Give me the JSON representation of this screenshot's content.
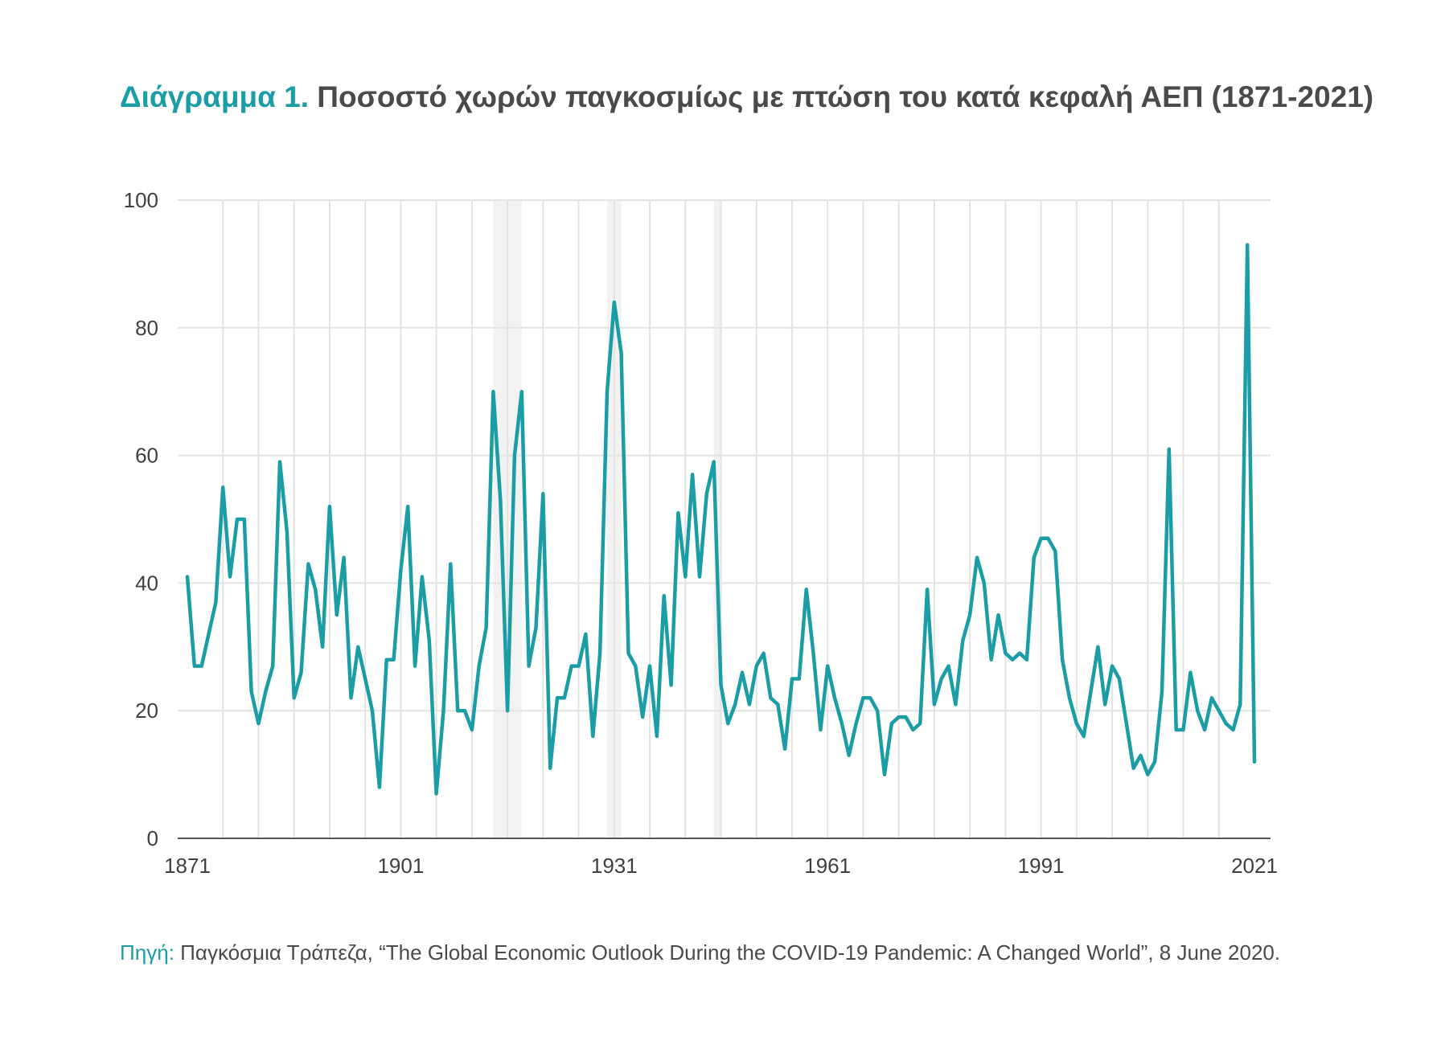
{
  "title": {
    "lead": "Διάγραμμα 1.",
    "text": "Ποσοστό χωρών παγκοσμίως με πτώση του κατά κεφαλή ΑΕΠ",
    "years": "(1871-2021)"
  },
  "source": {
    "lead": "Πηγή:",
    "text": " Παγκόσμια Τράπεζα, “The Global Economic Outlook During the COVID-19 Pandemic: A Changed World”, 8 June 2020."
  },
  "colors": {
    "line": "#1a9da5",
    "title_accent": "#1a9da5",
    "title_text": "#4a4a4a",
    "grid": "#e3e3e3",
    "shade": "#f2f2f2",
    "axis": "#555555"
  },
  "chart_data": {
    "type": "line",
    "title": "Ποσοστό χωρών παγκοσμίως με πτώση του κατά κεφαλή ΑΕΠ",
    "xlabel": "",
    "ylabel": "",
    "xlim": [
      1871,
      2021
    ],
    "ylim": [
      0,
      100
    ],
    "x_ticks": [
      1871,
      1901,
      1931,
      1961,
      1991,
      2021
    ],
    "y_ticks": [
      0,
      20,
      40,
      60,
      80,
      100
    ],
    "grid": "vertical and horizontal",
    "shaded_periods": [
      [
        1914,
        1918
      ],
      [
        1930,
        1932
      ],
      [
        1945,
        1946
      ]
    ],
    "series": [
      {
        "x": [
          1871,
          1872,
          1873,
          1874,
          1875,
          1876,
          1877,
          1878,
          1879,
          1880,
          1881,
          1882,
          1883,
          1884,
          1885,
          1886,
          1887,
          1888,
          1889,
          1890,
          1891,
          1892,
          1893,
          1894,
          1895,
          1896,
          1897,
          1898,
          1899,
          1900,
          1901,
          1902,
          1903,
          1904,
          1905,
          1906,
          1907,
          1908,
          1909,
          1910,
          1911,
          1912,
          1913,
          1914,
          1915,
          1916,
          1917,
          1918,
          1919,
          1920,
          1921,
          1922,
          1923,
          1924,
          1925,
          1926,
          1927,
          1928,
          1929,
          1930,
          1931,
          1932,
          1933,
          1934,
          1935,
          1936,
          1937,
          1938,
          1939,
          1940,
          1941,
          1942,
          1943,
          1944,
          1945,
          1946,
          1947,
          1948,
          1949,
          1950,
          1951,
          1952,
          1953,
          1954,
          1955,
          1956,
          1957,
          1958,
          1959,
          1960,
          1961,
          1962,
          1963,
          1964,
          1965,
          1966,
          1967,
          1968,
          1969,
          1970,
          1971,
          1972,
          1973,
          1974,
          1975,
          1976,
          1977,
          1978,
          1979,
          1980,
          1981,
          1982,
          1983,
          1984,
          1985,
          1986,
          1987,
          1988,
          1989,
          1990,
          1991,
          1992,
          1993,
          1994,
          1995,
          1996,
          1997,
          1998,
          1999,
          2000,
          2001,
          2002,
          2003,
          2004,
          2005,
          2006,
          2007,
          2008,
          2009,
          2010,
          2011,
          2012,
          2013,
          2014,
          2015,
          2016,
          2017,
          2018,
          2019,
          2020,
          2021
        ],
        "y": [
          41,
          27,
          27,
          32,
          37,
          55,
          41,
          50,
          50,
          23,
          18,
          23,
          27,
          59,
          48,
          22,
          26,
          43,
          39,
          30,
          52,
          35,
          44,
          22,
          30,
          25,
          20,
          8,
          28,
          28,
          42,
          52,
          27,
          41,
          31,
          7,
          20,
          43,
          20,
          20,
          17,
          27,
          33,
          70,
          53,
          20,
          60,
          70,
          27,
          33,
          54,
          11,
          22,
          22,
          27,
          27,
          32,
          16,
          29,
          70,
          84,
          76,
          29,
          27,
          19,
          27,
          16,
          38,
          24,
          51,
          41,
          57,
          41,
          54,
          59,
          24,
          18,
          21,
          26,
          21,
          27,
          29,
          22,
          21,
          14,
          25,
          25,
          39,
          29,
          17,
          27,
          22,
          18,
          13,
          18,
          22,
          22,
          20,
          10,
          18,
          19,
          19,
          17,
          18,
          39,
          21,
          25,
          27,
          21,
          31,
          35,
          44,
          40,
          28,
          35,
          29,
          28,
          29,
          28,
          44,
          47,
          47,
          45,
          28,
          22,
          18,
          16,
          23,
          30,
          21,
          27,
          25,
          18,
          11,
          13,
          10,
          12,
          23,
          61,
          17,
          17,
          26,
          20,
          17,
          22,
          20,
          18,
          17,
          21,
          93,
          12
        ]
      }
    ]
  }
}
